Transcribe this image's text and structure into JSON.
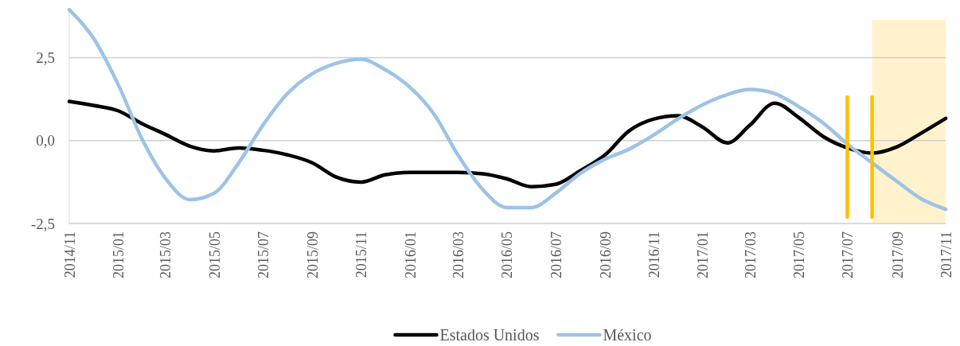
{
  "chart_data": {
    "type": "line",
    "x": [
      "2014-11",
      "2014-12",
      "2015-01",
      "2015-02",
      "2015-03",
      "2015-04",
      "2015-05",
      "2015-06",
      "2015-07",
      "2015-08",
      "2015-09",
      "2015-10",
      "2015-11",
      "2015-12",
      "2016-01",
      "2016-02",
      "2016-03",
      "2016-04",
      "2016-05",
      "2016-06",
      "2016-07",
      "2016-08",
      "2016-09",
      "2016-10",
      "2016-11",
      "2016-12",
      "2017-01",
      "2017-02",
      "2017-03",
      "2017-04",
      "2017-05",
      "2017-06",
      "2017-07",
      "2017-08",
      "2017-09",
      "2017-10",
      "2017-11"
    ],
    "series": [
      {
        "name": "Estados Unidos",
        "color": "#000000",
        "values": [
          1.18,
          1.06,
          0.9,
          0.5,
          0.19,
          -0.17,
          -0.31,
          -0.22,
          -0.29,
          -0.43,
          -0.67,
          -1.1,
          -1.25,
          -1.03,
          -0.96,
          -0.96,
          -0.96,
          -1.0,
          -1.15,
          -1.39,
          -1.32,
          -0.91,
          -0.43,
          0.29,
          0.65,
          0.75,
          0.41,
          -0.07,
          0.46,
          1.13,
          0.7,
          0.12,
          -0.22,
          -0.38,
          -0.19,
          0.22,
          0.67
        ]
      },
      {
        "name": "México",
        "color": "#9dc3e6",
        "values": [
          3.95,
          3.1,
          1.7,
          0.0,
          -1.13,
          -1.78,
          -1.59,
          -0.67,
          0.46,
          1.42,
          2.02,
          2.33,
          2.45,
          2.14,
          1.61,
          0.77,
          -0.43,
          -1.47,
          -2.02,
          -2.02,
          -1.59,
          -0.99,
          -0.56,
          -0.26,
          0.17,
          0.65,
          1.08,
          1.39,
          1.54,
          1.42,
          1.03,
          0.53,
          -0.1,
          -0.67,
          -1.23,
          -1.75,
          -2.07
        ]
      }
    ],
    "xlim": [
      "2014-11",
      "2017-11"
    ],
    "xticks": [
      {
        "value": "2014-11",
        "label": "2014/11"
      },
      {
        "value": "2015-01",
        "label": "2015/01"
      },
      {
        "value": "2015-03",
        "label": "2015/03"
      },
      {
        "value": "2015-05",
        "label": "2015/05"
      },
      {
        "value": "2015-07",
        "label": "2015/07"
      },
      {
        "value": "2015-09",
        "label": "2015/09"
      },
      {
        "value": "2015-11",
        "label": "2015/11"
      },
      {
        "value": "2016-01",
        "label": "2016/01"
      },
      {
        "value": "2016-03",
        "label": "2016/03"
      },
      {
        "value": "2016-05",
        "label": "2016/05"
      },
      {
        "value": "2016-07",
        "label": "2016/07"
      },
      {
        "value": "2016-09",
        "label": "2016/09"
      },
      {
        "value": "2016-11",
        "label": "2016/11"
      },
      {
        "value": "2017-01",
        "label": "2017/01"
      },
      {
        "value": "2017-03",
        "label": "2017/03"
      },
      {
        "value": "2017-05",
        "label": "2017/05"
      },
      {
        "value": "2017-07",
        "label": "2017/07"
      },
      {
        "value": "2017-09",
        "label": "2017/09"
      },
      {
        "value": "2017-11",
        "label": "2017/11"
      }
    ],
    "ylim": [
      -2.5,
      4.0
    ],
    "yticks": [
      {
        "value": -2.5,
        "label": "-2,5"
      },
      {
        "value": 0,
        "label": "0,0"
      },
      {
        "value": 2.5,
        "label": "2,5"
      }
    ],
    "grid": "y",
    "legend": "bottom",
    "line_style": "solid",
    "marker": "none",
    "bands": [
      {
        "axis": "x",
        "from": "2017-08",
        "to": "2017-11",
        "color": "#fff2cc"
      }
    ],
    "ref_lines": [
      {
        "axis": "x",
        "value": "2017-07",
        "color": "#ffc000"
      },
      {
        "axis": "x",
        "value": "2017-08",
        "color": "#ffc000"
      }
    ]
  }
}
